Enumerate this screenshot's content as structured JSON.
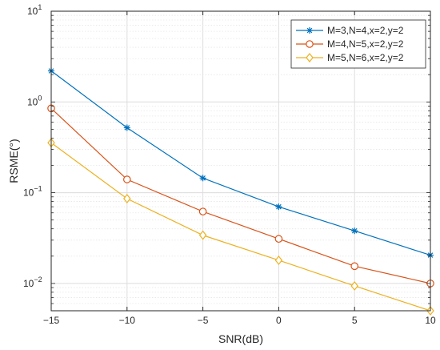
{
  "chart_data": {
    "type": "line",
    "xlabel": "SNR(dB)",
    "ylabel": "RSME(°)",
    "xlim": [
      -15,
      10
    ],
    "ylim": [
      0.005,
      10
    ],
    "yscale": "log",
    "grid": true,
    "legend_position": "top-right",
    "x": [
      -15,
      -10,
      -5,
      0,
      5,
      10
    ],
    "x_tick_labels": [
      "−15",
      "−10",
      "−5",
      "0",
      "5",
      "10"
    ],
    "y_ticks": [
      {
        "value": 0.01,
        "base": "10",
        "exp": "−2"
      },
      {
        "value": 0.1,
        "base": "10",
        "exp": "−1"
      },
      {
        "value": 1,
        "base": "10",
        "exp": "0"
      },
      {
        "value": 10,
        "base": "10",
        "exp": "1"
      }
    ],
    "series": [
      {
        "name": "M=3,N=4,x=2,y=2",
        "color": "#0072BD",
        "marker": "asterisk",
        "values": [
          2.2,
          0.52,
          0.145,
          0.07,
          0.038,
          0.0205
        ]
      },
      {
        "name": "M=4,N=5,x=2,y=2",
        "color": "#D95319",
        "marker": "circle",
        "values": [
          0.85,
          0.14,
          0.062,
          0.031,
          0.0155,
          0.01
        ]
      },
      {
        "name": "M=5,N=6,x=2,y=2",
        "color": "#EDB120",
        "marker": "diamond",
        "values": [
          0.355,
          0.086,
          0.034,
          0.018,
          0.0094,
          0.005
        ]
      }
    ]
  }
}
